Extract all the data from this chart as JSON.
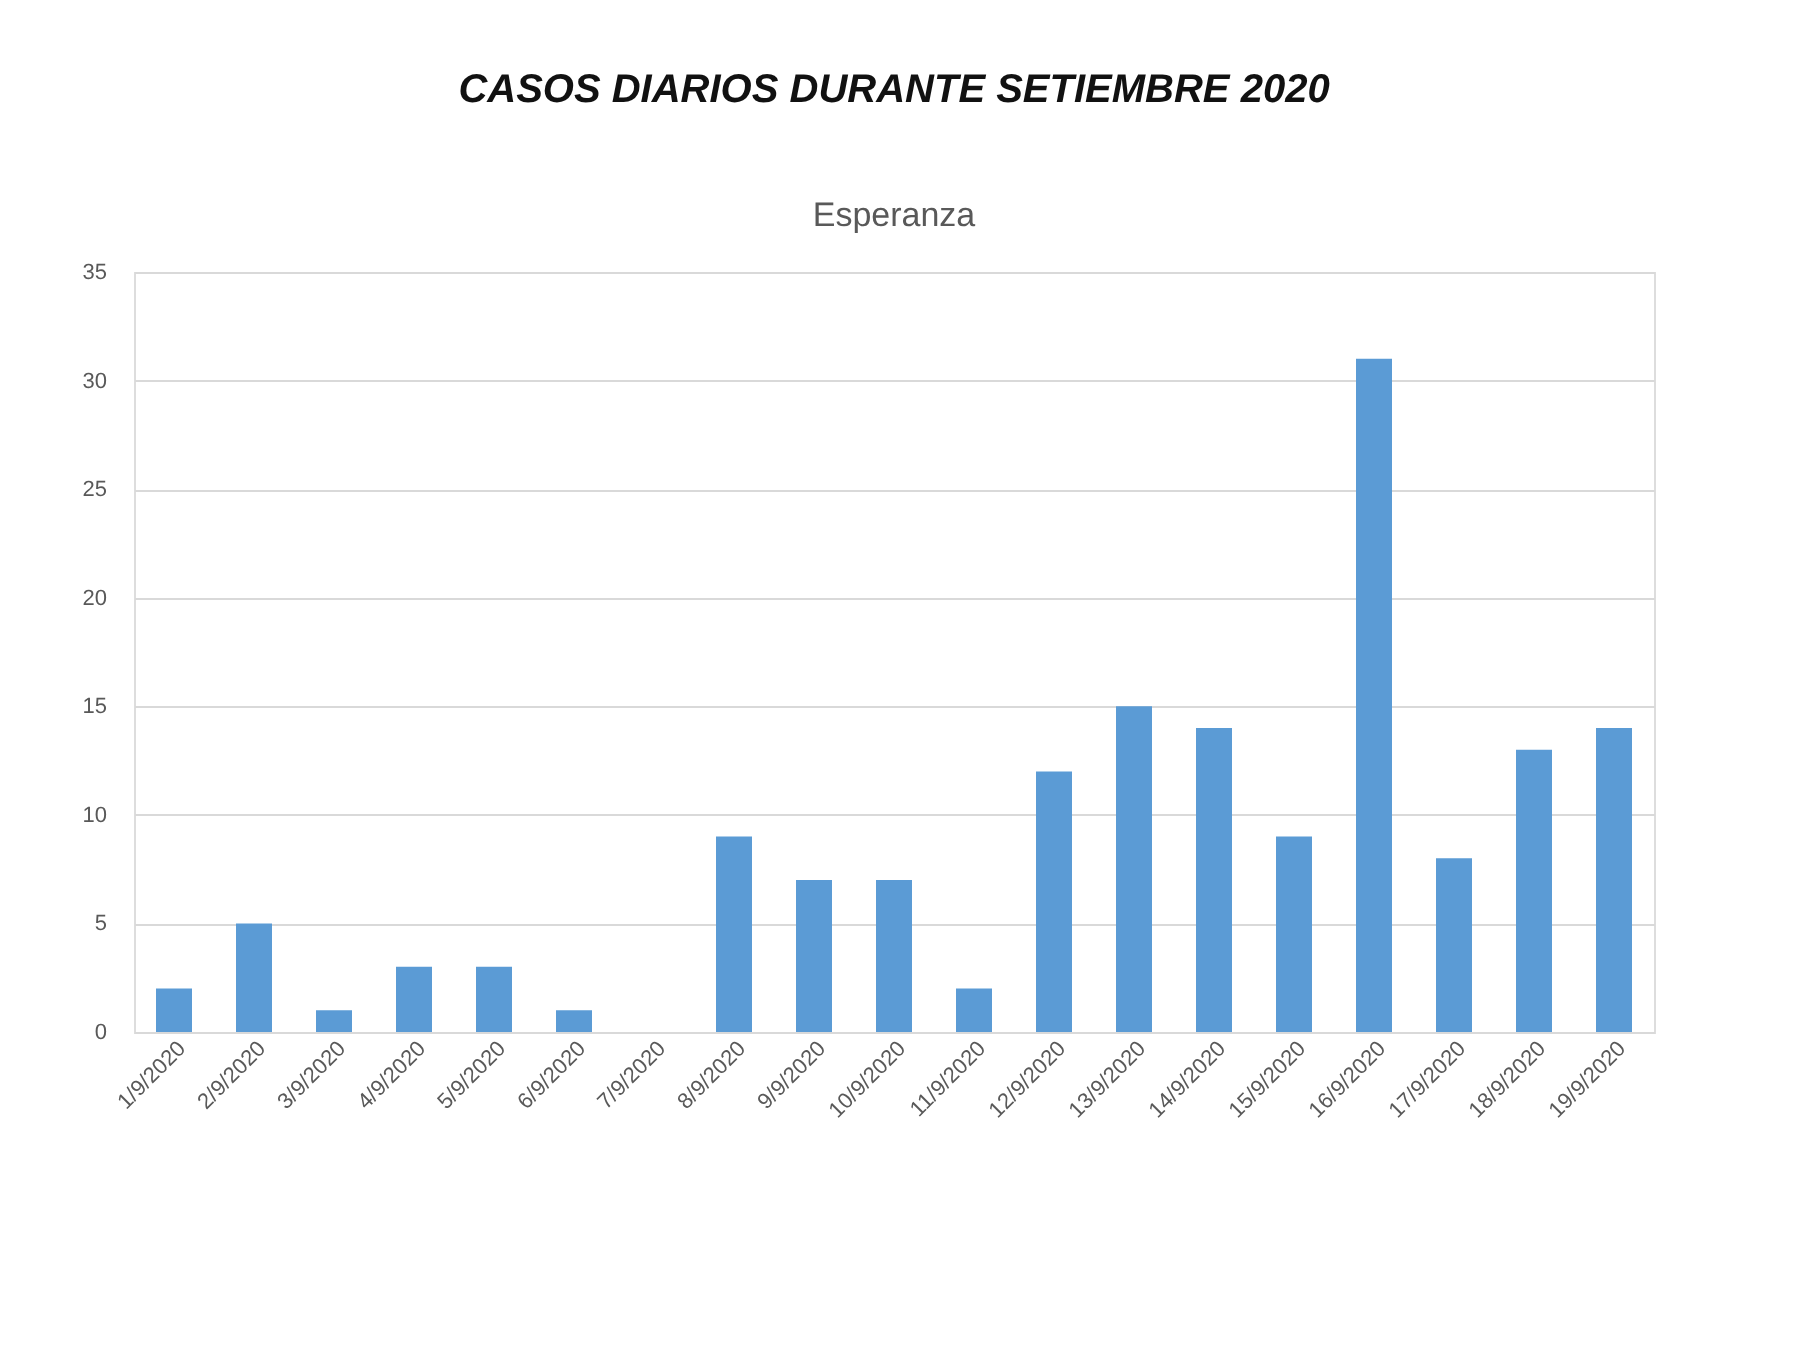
{
  "chart_data": {
    "type": "bar",
    "title": "CASOS DIARIOS DURANTE SETIEMBRE 2020",
    "subtitle": "Esperanza",
    "categories": [
      "1/9/2020",
      "2/9/2020",
      "3/9/2020",
      "4/9/2020",
      "5/9/2020",
      "6/9/2020",
      "7/9/2020",
      "8/9/2020",
      "9/9/2020",
      "10/9/2020",
      "11/9/2020",
      "12/9/2020",
      "13/9/2020",
      "14/9/2020",
      "15/9/2020",
      "16/9/2020",
      "17/9/2020",
      "18/9/2020",
      "19/9/2020"
    ],
    "values": [
      2,
      5,
      1,
      3,
      3,
      1,
      0,
      9,
      7,
      7,
      2,
      12,
      15,
      14,
      9,
      31,
      8,
      13,
      14
    ],
    "color": "#5b9bd5",
    "ylim": [
      0,
      35
    ],
    "yticks": [
      0,
      5,
      10,
      15,
      20,
      25,
      30,
      35
    ],
    "grid": "y"
  }
}
